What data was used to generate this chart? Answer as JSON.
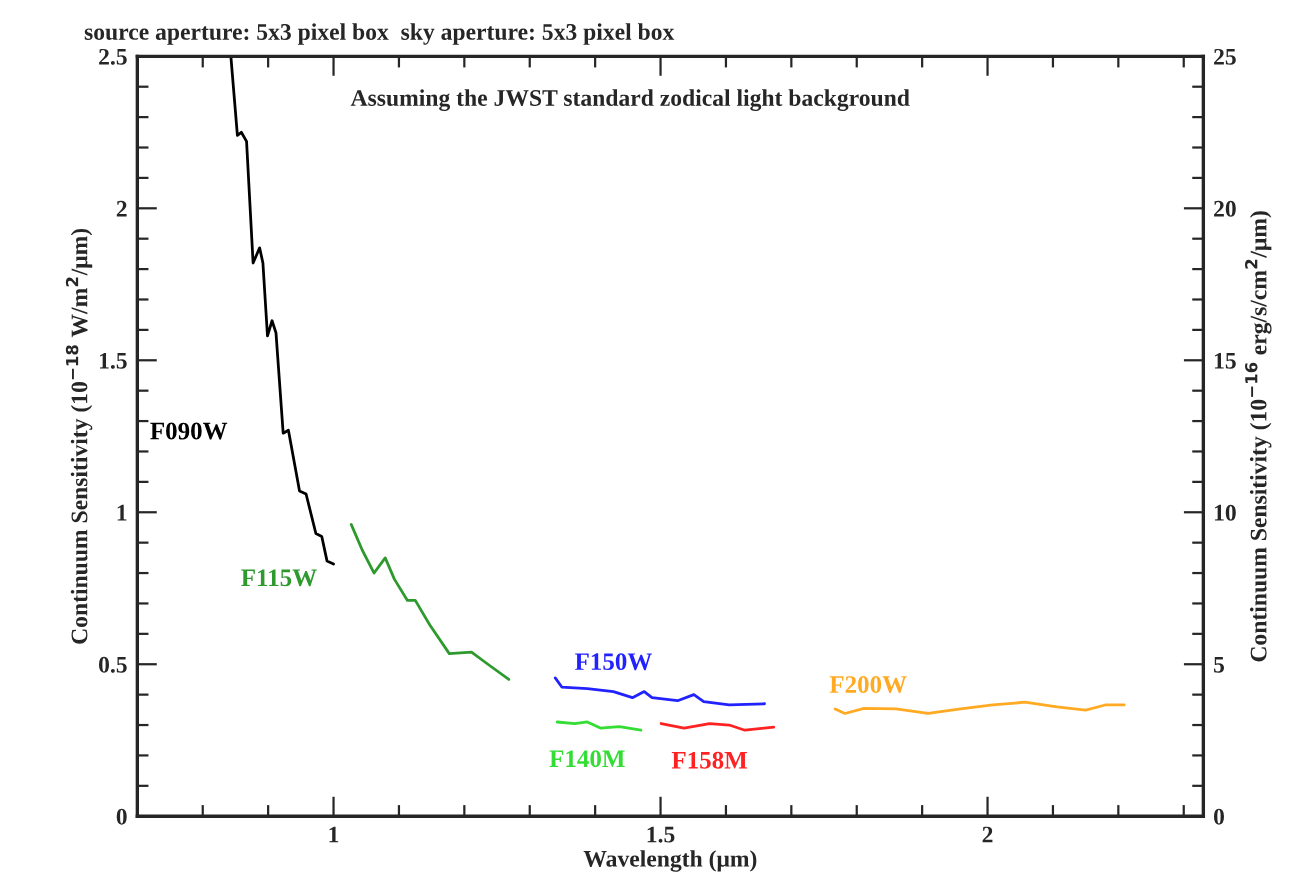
{
  "chart_data": {
    "type": "line",
    "title": "source aperture: 5x3 pixel box  sky aperture: 5x3 pixel box",
    "xlabel": "Wavelength (μm)",
    "ylabel": "Continuum Sensitivity (10$^{−18}$ W/m$^{2}$/μm)",
    "y2label": "Continuum Sensitivity (10$^{−16}$ erg/s/cm$^{2}$/μm)",
    "annotations": [
      "Assuming the JWST standard zodical light background"
    ],
    "xlim": [
      0.7,
      2.33
    ],
    "xticks": [
      {
        "value": 0.8,
        "label": null
      },
      {
        "value": 0.9,
        "label": null
      },
      1,
      {
        "value": 1.1,
        "label": null
      },
      {
        "value": 1.2,
        "label": null
      },
      {
        "value": 1.3,
        "label": null
      },
      {
        "value": 1.4,
        "label": null
      },
      1.5,
      {
        "value": 1.6,
        "label": null
      },
      {
        "value": 1.7,
        "label": null
      },
      {
        "value": 1.8,
        "label": null
      },
      {
        "value": 1.9,
        "label": null
      },
      2,
      {
        "value": 2.1,
        "label": null
      },
      {
        "value": 2.2,
        "label": null
      },
      {
        "value": 2.3,
        "label": null
      }
    ],
    "ylim": [
      0,
      2.5
    ],
    "yticks": [
      0,
      {
        "value": 0.1,
        "label": null
      },
      {
        "value": 0.2,
        "label": null
      },
      {
        "value": 0.3,
        "label": null
      },
      {
        "value": 0.4,
        "label": null
      },
      0.5,
      {
        "value": 0.6,
        "label": null
      },
      {
        "value": 0.7,
        "label": null
      },
      {
        "value": 0.8,
        "label": null
      },
      {
        "value": 0.9,
        "label": null
      },
      1,
      {
        "value": 1.1,
        "label": null
      },
      {
        "value": 1.2,
        "label": null
      },
      {
        "value": 1.3,
        "label": null
      },
      {
        "value": 1.4,
        "label": null
      },
      1.5,
      {
        "value": 1.6,
        "label": null
      },
      {
        "value": 1.7,
        "label": null
      },
      {
        "value": 1.8,
        "label": null
      },
      {
        "value": 1.9,
        "label": null
      },
      2,
      {
        "value": 2.1,
        "label": null
      },
      {
        "value": 2.2,
        "label": null
      },
      {
        "value": 2.3,
        "label": null
      },
      {
        "value": 2.4,
        "label": null
      },
      2.5
    ],
    "y2lim": [
      0,
      25
    ],
    "y2ticks": [
      0,
      {
        "value": 1,
        "label": null
      },
      {
        "value": 2,
        "label": null
      },
      {
        "value": 3,
        "label": null
      },
      {
        "value": 4,
        "label": null
      },
      5,
      {
        "value": 6,
        "label": null
      },
      {
        "value": 7,
        "label": null
      },
      {
        "value": 8,
        "label": null
      },
      {
        "value": 9,
        "label": null
      },
      10,
      {
        "value": 11,
        "label": null
      },
      {
        "value": 12,
        "label": null
      },
      {
        "value": 13,
        "label": null
      },
      {
        "value": 14,
        "label": null
      },
      15,
      {
        "value": 16,
        "label": null
      },
      {
        "value": 17,
        "label": null
      },
      {
        "value": 18,
        "label": null
      },
      {
        "value": 19,
        "label": null
      },
      20,
      {
        "value": 21,
        "label": null
      },
      {
        "value": 22,
        "label": null
      },
      {
        "value": 23,
        "label": null
      },
      {
        "value": 24,
        "label": null
      },
      25
    ],
    "grid": false,
    "legend": false,
    "series": [
      {
        "name": "F090W",
        "color": "#000000",
        "x": [
          0.843,
          0.853,
          0.859,
          0.867,
          0.877,
          0.887,
          0.892,
          0.899,
          0.906,
          0.912,
          0.923,
          0.931,
          0.948,
          0.958,
          0.973,
          0.982,
          0.99,
          1.0
        ],
        "values": [
          2.5,
          2.24,
          2.25,
          2.22,
          1.82,
          1.87,
          1.82,
          1.58,
          1.63,
          1.59,
          1.26,
          1.27,
          1.07,
          1.06,
          0.93,
          0.92,
          0.84,
          0.83
        ]
      },
      {
        "name": "F115W",
        "color": "#2e9a2e",
        "x": [
          1.027,
          1.044,
          1.062,
          1.079,
          1.093,
          1.113,
          1.125,
          1.147,
          1.177,
          1.211,
          1.236,
          1.268
        ],
        "values": [
          0.96,
          0.875,
          0.8,
          0.85,
          0.78,
          0.71,
          0.71,
          0.63,
          0.535,
          0.54,
          0.5,
          0.45
        ]
      },
      {
        "name": "F150W",
        "color": "#2222ff",
        "x": [
          1.339,
          1.349,
          1.388,
          1.428,
          1.457,
          1.475,
          1.487,
          1.526,
          1.551,
          1.566,
          1.605,
          1.659
        ],
        "values": [
          0.455,
          0.425,
          0.42,
          0.41,
          0.39,
          0.41,
          0.39,
          0.38,
          0.4,
          0.377,
          0.366,
          0.37
        ]
      },
      {
        "name": "F140M",
        "color": "#33dd33",
        "x": [
          1.342,
          1.369,
          1.388,
          1.408,
          1.437,
          1.47
        ],
        "values": [
          0.31,
          0.305,
          0.31,
          0.29,
          0.295,
          0.283
        ]
      },
      {
        "name": "F158M",
        "color": "#ff2222",
        "x": [
          1.501,
          1.536,
          1.575,
          1.605,
          1.629,
          1.673
        ],
        "values": [
          0.305,
          0.29,
          0.305,
          0.3,
          0.283,
          0.293
        ]
      },
      {
        "name": "F200W",
        "color": "#ffaa22",
        "x": [
          1.767,
          1.782,
          1.811,
          1.86,
          1.909,
          1.959,
          2.008,
          2.057,
          2.106,
          2.15,
          2.18,
          2.209
        ],
        "values": [
          0.353,
          0.338,
          0.355,
          0.353,
          0.338,
          0.353,
          0.366,
          0.375,
          0.36,
          0.349,
          0.366,
          0.366
        ]
      }
    ]
  }
}
